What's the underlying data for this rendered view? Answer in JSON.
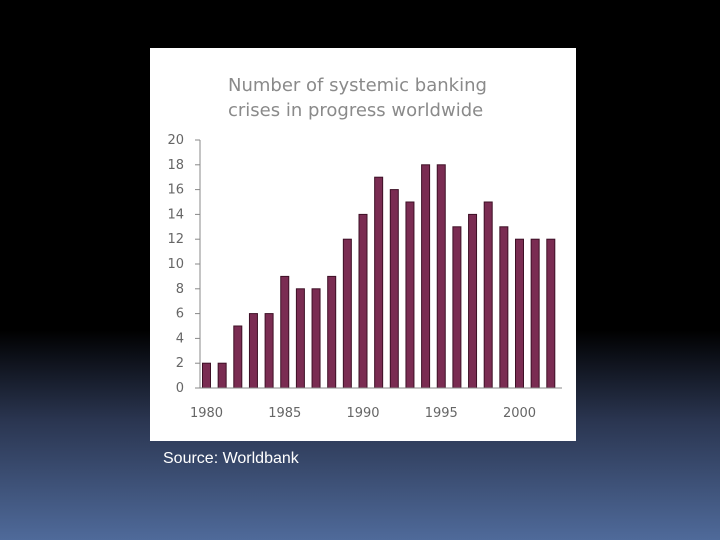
{
  "caption": {
    "source": "Source: Worldbank"
  },
  "colors": {
    "bar": "#7a2c52",
    "bar_edge": "#3e1026",
    "axis": "#888888"
  },
  "chart_data": {
    "type": "bar",
    "title": [
      "Number of systemic banking",
      "crises in progress worldwide"
    ],
    "xlabel": "",
    "ylabel": "",
    "categories": [
      1980,
      1981,
      1982,
      1983,
      1984,
      1985,
      1986,
      1987,
      1988,
      1989,
      1990,
      1991,
      1992,
      1993,
      1994,
      1995,
      1996,
      1997,
      1998,
      1999,
      2000,
      2001,
      2002
    ],
    "values": [
      2,
      2,
      5,
      6,
      6,
      9,
      8,
      8,
      9,
      12,
      14,
      17,
      16,
      15,
      18,
      18,
      13,
      14,
      15,
      13,
      12,
      12,
      12
    ],
    "ylim": [
      0,
      20
    ],
    "yticks": [
      0,
      2,
      4,
      6,
      8,
      10,
      12,
      14,
      16,
      18,
      20
    ],
    "xtick_labels": [
      "1980",
      "1985",
      "1990",
      "1995",
      "2000"
    ],
    "grid": false,
    "legend": "none"
  }
}
